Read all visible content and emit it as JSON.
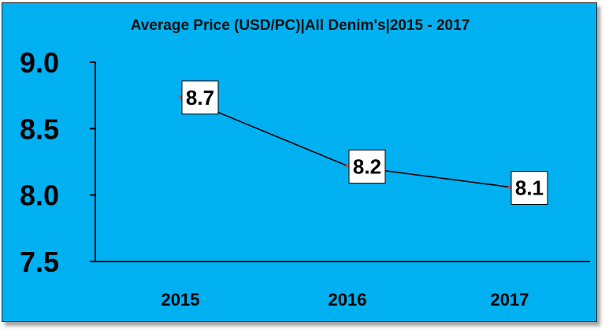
{
  "chart_data": {
    "type": "line",
    "title": "Average Price (USD/PC)|All Denim's|2015 - 2017",
    "xlabel": "",
    "ylabel": "",
    "categories": [
      "2015",
      "2016",
      "2017"
    ],
    "series": [
      {
        "values": [
          8.74,
          8.22,
          8.06
        ],
        "labels": [
          "8.7",
          "8.2",
          "8.1"
        ]
      }
    ],
    "ylim": [
      7.5,
      9.0
    ],
    "yticks": [
      "9.0",
      "8.5",
      "8.0",
      "7.5"
    ],
    "grid": false,
    "legend": "none",
    "colors": {
      "background": "#00b0f0",
      "line": "#000000",
      "marker": "#c0504d",
      "label_box": "#ffffff"
    }
  }
}
